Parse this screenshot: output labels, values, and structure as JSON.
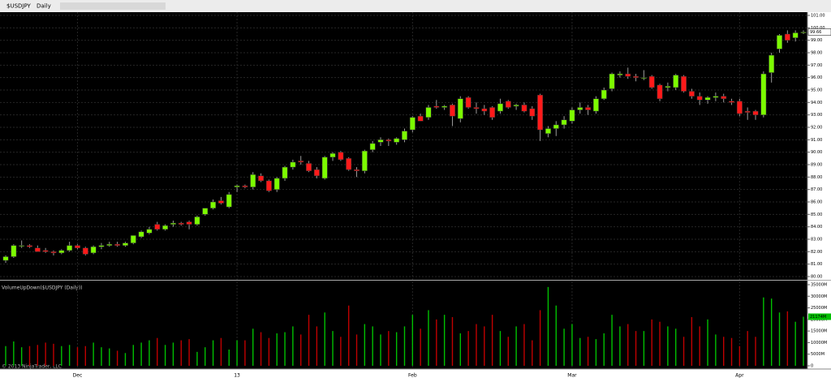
{
  "toolbar": {
    "symbol": "$USDJPY",
    "interval": "Daily"
  },
  "copyright": "© 2013 NinjaTrader, LLC",
  "chart_data": [
    {
      "type": "candlestick",
      "grid": true,
      "up_color": "#7cfc00",
      "down_color": "#ff1a1a",
      "categories": [
        null,
        null,
        null,
        null,
        null,
        null,
        null,
        null,
        null,
        "Dec",
        null,
        null,
        null,
        null,
        null,
        null,
        null,
        null,
        null,
        null,
        null,
        null,
        null,
        null,
        null,
        null,
        null,
        null,
        null,
        "13",
        null,
        null,
        null,
        null,
        null,
        null,
        null,
        null,
        null,
        null,
        null,
        null,
        null,
        null,
        null,
        null,
        null,
        null,
        null,
        null,
        null,
        "Feb",
        null,
        null,
        null,
        null,
        null,
        null,
        null,
        null,
        null,
        null,
        null,
        null,
        null,
        null,
        null,
        null,
        null,
        null,
        null,
        "Mar",
        null,
        null,
        null,
        null,
        null,
        null,
        null,
        null,
        null,
        null,
        null,
        null,
        null,
        null,
        null,
        null,
        null,
        null,
        null,
        null,
        "Apr",
        null,
        null,
        null,
        null,
        null,
        null,
        null,
        null
      ],
      "open": [
        81.3,
        81.6,
        82.5,
        82.5,
        82.3,
        82.1,
        82.0,
        81.9,
        82.1,
        82.5,
        82.3,
        81.9,
        82.4,
        82.5,
        82.6,
        82.5,
        82.7,
        83.2,
        83.5,
        84.2,
        83.8,
        84.2,
        84.3,
        84.4,
        84.2,
        85.0,
        85.5,
        86.1,
        85.6,
        87.2,
        87.3,
        87.2,
        88.1,
        87.7,
        87.0,
        87.9,
        88.8,
        89.3,
        89.1,
        88.6,
        87.9,
        89.6,
        90.0,
        89.5,
        88.6,
        88.5,
        90.2,
        90.8,
        91.0,
        90.8,
        91.0,
        91.8,
        92.9,
        92.8,
        93.7,
        93.6,
        93.8,
        92.7,
        94.4,
        93.6,
        93.5,
        93.6,
        93.3,
        94.1,
        93.7,
        93.8,
        93.5,
        94.6,
        91.5,
        91.9,
        92.2,
        92.5,
        93.4,
        93.6,
        93.3,
        94.3,
        95.1,
        96.2,
        96.3,
        96.1,
        96.0,
        96.1,
        95.4,
        95.2,
        95.2,
        96.1,
        94.9,
        94.5,
        94.2,
        94.4,
        94.5,
        94.1,
        94.1,
        93.3,
        93.3,
        93.0,
        96.4,
        98.3,
        99.5,
        99.2,
        99.6
      ],
      "high": [
        81.7,
        82.6,
        82.9,
        82.6,
        82.5,
        82.3,
        82.1,
        82.2,
        82.8,
        82.6,
        82.4,
        82.5,
        82.7,
        82.8,
        82.8,
        82.8,
        83.3,
        83.7,
        84.0,
        84.4,
        84.2,
        84.5,
        84.4,
        84.5,
        84.9,
        85.5,
        86.2,
        86.4,
        86.8,
        87.4,
        87.4,
        88.4,
        88.3,
        87.8,
        88.0,
        88.9,
        89.4,
        89.7,
        89.3,
        88.8,
        89.7,
        90.0,
        90.1,
        89.6,
        88.8,
        90.2,
        90.9,
        91.2,
        91.1,
        91.2,
        91.9,
        92.9,
        93.1,
        93.8,
        94.2,
        93.8,
        93.9,
        94.5,
        94.5,
        94.0,
        93.8,
        93.7,
        94.3,
        94.2,
        93.9,
        94.0,
        93.7,
        94.7,
        92.1,
        92.5,
        92.9,
        93.6,
        94.0,
        93.8,
        94.5,
        95.2,
        96.4,
        96.5,
        96.8,
        96.3,
        96.6,
        96.2,
        95.5,
        95.6,
        96.3,
        96.2,
        95.1,
        94.8,
        94.5,
        94.8,
        94.7,
        94.3,
        94.3,
        93.6,
        93.4,
        96.5,
        98.0,
        99.5,
        99.8,
        99.8,
        99.8
      ],
      "low": [
        81.1,
        81.5,
        82.3,
        82.3,
        82.0,
        81.9,
        81.7,
        81.8,
        82.0,
        82.2,
        81.7,
        81.8,
        82.2,
        82.4,
        82.4,
        82.4,
        82.6,
        83.1,
        83.4,
        83.7,
        83.7,
        84.0,
        84.1,
        83.8,
        84.1,
        84.9,
        85.4,
        85.8,
        85.5,
        86.8,
        87.1,
        87.0,
        87.6,
        86.8,
        86.8,
        87.7,
        88.6,
        89.0,
        88.4,
        87.9,
        87.8,
        89.3,
        89.3,
        88.5,
        88.0,
        88.3,
        90.0,
        90.5,
        90.5,
        90.6,
        90.8,
        91.6,
        92.5,
        92.6,
        93.5,
        93.4,
        92.1,
        92.4,
        93.5,
        93.1,
        93.0,
        92.6,
        93.1,
        93.5,
        93.4,
        93.2,
        92.6,
        90.9,
        91.2,
        91.3,
        91.9,
        92.3,
        93.1,
        93.0,
        93.1,
        94.2,
        94.9,
        96.0,
        95.9,
        95.7,
        95.8,
        95.1,
        94.1,
        94.9,
        95.0,
        94.8,
        94.3,
        93.8,
        93.9,
        94.1,
        94.0,
        93.8,
        92.9,
        92.6,
        92.6,
        92.8,
        95.6,
        98.0,
        98.8,
        98.9,
        99.5
      ],
      "close": [
        81.6,
        82.5,
        82.5,
        82.4,
        82.0,
        82.0,
        81.9,
        82.1,
        82.5,
        82.3,
        81.8,
        82.4,
        82.5,
        82.6,
        82.5,
        82.7,
        83.3,
        83.6,
        83.8,
        83.8,
        84.1,
        84.3,
        84.2,
        84.2,
        84.8,
        85.5,
        86.0,
        85.9,
        86.6,
        87.3,
        87.2,
        88.2,
        87.7,
        86.9,
        87.9,
        88.8,
        89.2,
        89.2,
        88.5,
        88.1,
        89.6,
        89.9,
        89.4,
        88.6,
        88.5,
        90.1,
        90.7,
        91.0,
        90.9,
        91.1,
        91.7,
        92.8,
        92.5,
        93.6,
        93.6,
        93.7,
        92.9,
        94.3,
        93.6,
        93.5,
        93.3,
        92.8,
        93.9,
        93.6,
        93.8,
        93.3,
        92.9,
        91.8,
        91.9,
        92.2,
        92.6,
        93.4,
        93.6,
        93.4,
        94.3,
        95.0,
        96.3,
        96.3,
        96.1,
        96.0,
        96.0,
        95.2,
        94.3,
        95.3,
        96.2,
        94.9,
        94.5,
        94.2,
        94.4,
        94.5,
        94.3,
        94.0,
        93.1,
        93.2,
        93.0,
        96.3,
        97.8,
        99.4,
        99.0,
        99.6,
        99.66
      ],
      "last_close_label": "99.66",
      "ylim": [
        80,
        101
      ],
      "yticks": [
        {
          "value": 80,
          "label": "80.00"
        },
        {
          "value": 81,
          "label": "81.00"
        },
        {
          "value": 82,
          "label": "82.00"
        },
        {
          "value": 83,
          "label": "83.00"
        },
        {
          "value": 84,
          "label": "84.00"
        },
        {
          "value": 85,
          "label": "85.00"
        },
        {
          "value": 86,
          "label": "86.00"
        },
        {
          "value": 87,
          "label": "87.00"
        },
        {
          "value": 88,
          "label": "88.00"
        },
        {
          "value": 89,
          "label": "89.00"
        },
        {
          "value": 90,
          "label": "90.00"
        },
        {
          "value": 91,
          "label": "91.00"
        },
        {
          "value": 92,
          "label": "92.00"
        },
        {
          "value": 93,
          "label": "93.00"
        },
        {
          "value": 94,
          "label": "94.00"
        },
        {
          "value": 95,
          "label": "95.00"
        },
        {
          "value": 96,
          "label": "96.00"
        },
        {
          "value": 97,
          "label": "97.00"
        },
        {
          "value": 98,
          "label": "98.00"
        },
        {
          "value": 99,
          "label": "99.00"
        },
        {
          "value": 100,
          "label": "100.00"
        },
        {
          "value": 101,
          "label": "101.00"
        }
      ]
    },
    {
      "type": "bar",
      "title": "VolumeUpDown($USDJPY (Daily))",
      "up_color": "#00c000",
      "down_color": "#c00000",
      "values": [
        8500,
        10500,
        8000,
        8500,
        9000,
        10000,
        9500,
        8500,
        9000,
        8000,
        8500,
        10000,
        8000,
        7500,
        6500,
        5500,
        9000,
        10000,
        11000,
        12000,
        9000,
        10000,
        11000,
        11500,
        6000,
        8000,
        11000,
        12000,
        7000,
        11000,
        11000,
        16000,
        14500,
        12000,
        14000,
        14500,
        17000,
        13500,
        22000,
        17000,
        23000,
        15000,
        12500,
        26000,
        13500,
        18000,
        17000,
        13500,
        15000,
        14500,
        17000,
        22000,
        16000,
        24000,
        20000,
        22000,
        21000,
        14000,
        15000,
        18000,
        17000,
        22000,
        15000,
        12500,
        17000,
        18000,
        11000,
        24000,
        34000,
        26000,
        16000,
        18000,
        12000,
        12500,
        11500,
        14000,
        22000,
        17000,
        18000,
        15000,
        15000,
        20000,
        19000,
        17000,
        16000,
        12500,
        21000,
        17000,
        20000,
        13500,
        12500,
        12000,
        8500,
        15000,
        12500,
        29500,
        29000,
        23000,
        23500,
        19000,
        21174
      ],
      "value_labels": [
        null,
        null,
        null,
        null,
        null,
        null,
        null,
        null,
        null,
        null,
        null,
        null,
        null,
        null,
        null,
        null,
        null,
        null,
        null,
        null,
        null,
        null,
        null,
        null,
        null,
        null,
        null,
        null,
        null,
        null,
        null,
        null,
        null,
        null,
        null,
        null,
        null,
        null,
        null,
        null,
        null,
        null,
        null,
        null,
        null,
        null,
        null,
        null,
        null,
        null,
        null,
        null,
        null,
        null,
        null,
        null,
        null,
        null,
        null,
        null,
        null,
        null,
        null,
        null,
        null,
        null,
        null,
        null,
        null,
        null,
        null,
        null,
        null,
        null,
        null,
        null,
        null,
        null,
        null,
        null,
        null,
        null,
        null,
        null,
        null,
        null,
        null,
        null,
        null,
        null,
        null,
        null,
        null,
        null,
        null,
        null,
        null,
        null,
        null,
        null,
        "21174M"
      ],
      "ylim": [
        0,
        35000
      ],
      "yticks": [
        0,
        {
          "value": 5000,
          "label": "5000M"
        },
        {
          "value": 10000,
          "label": "10000M"
        },
        {
          "value": 15000,
          "label": "15000M"
        },
        {
          "value": 20000,
          "label": "20000M"
        },
        {
          "value": 25000,
          "label": "25000M"
        },
        {
          "value": 30000,
          "label": "30000M"
        },
        {
          "value": 35000,
          "label": "35000M"
        }
      ]
    }
  ]
}
